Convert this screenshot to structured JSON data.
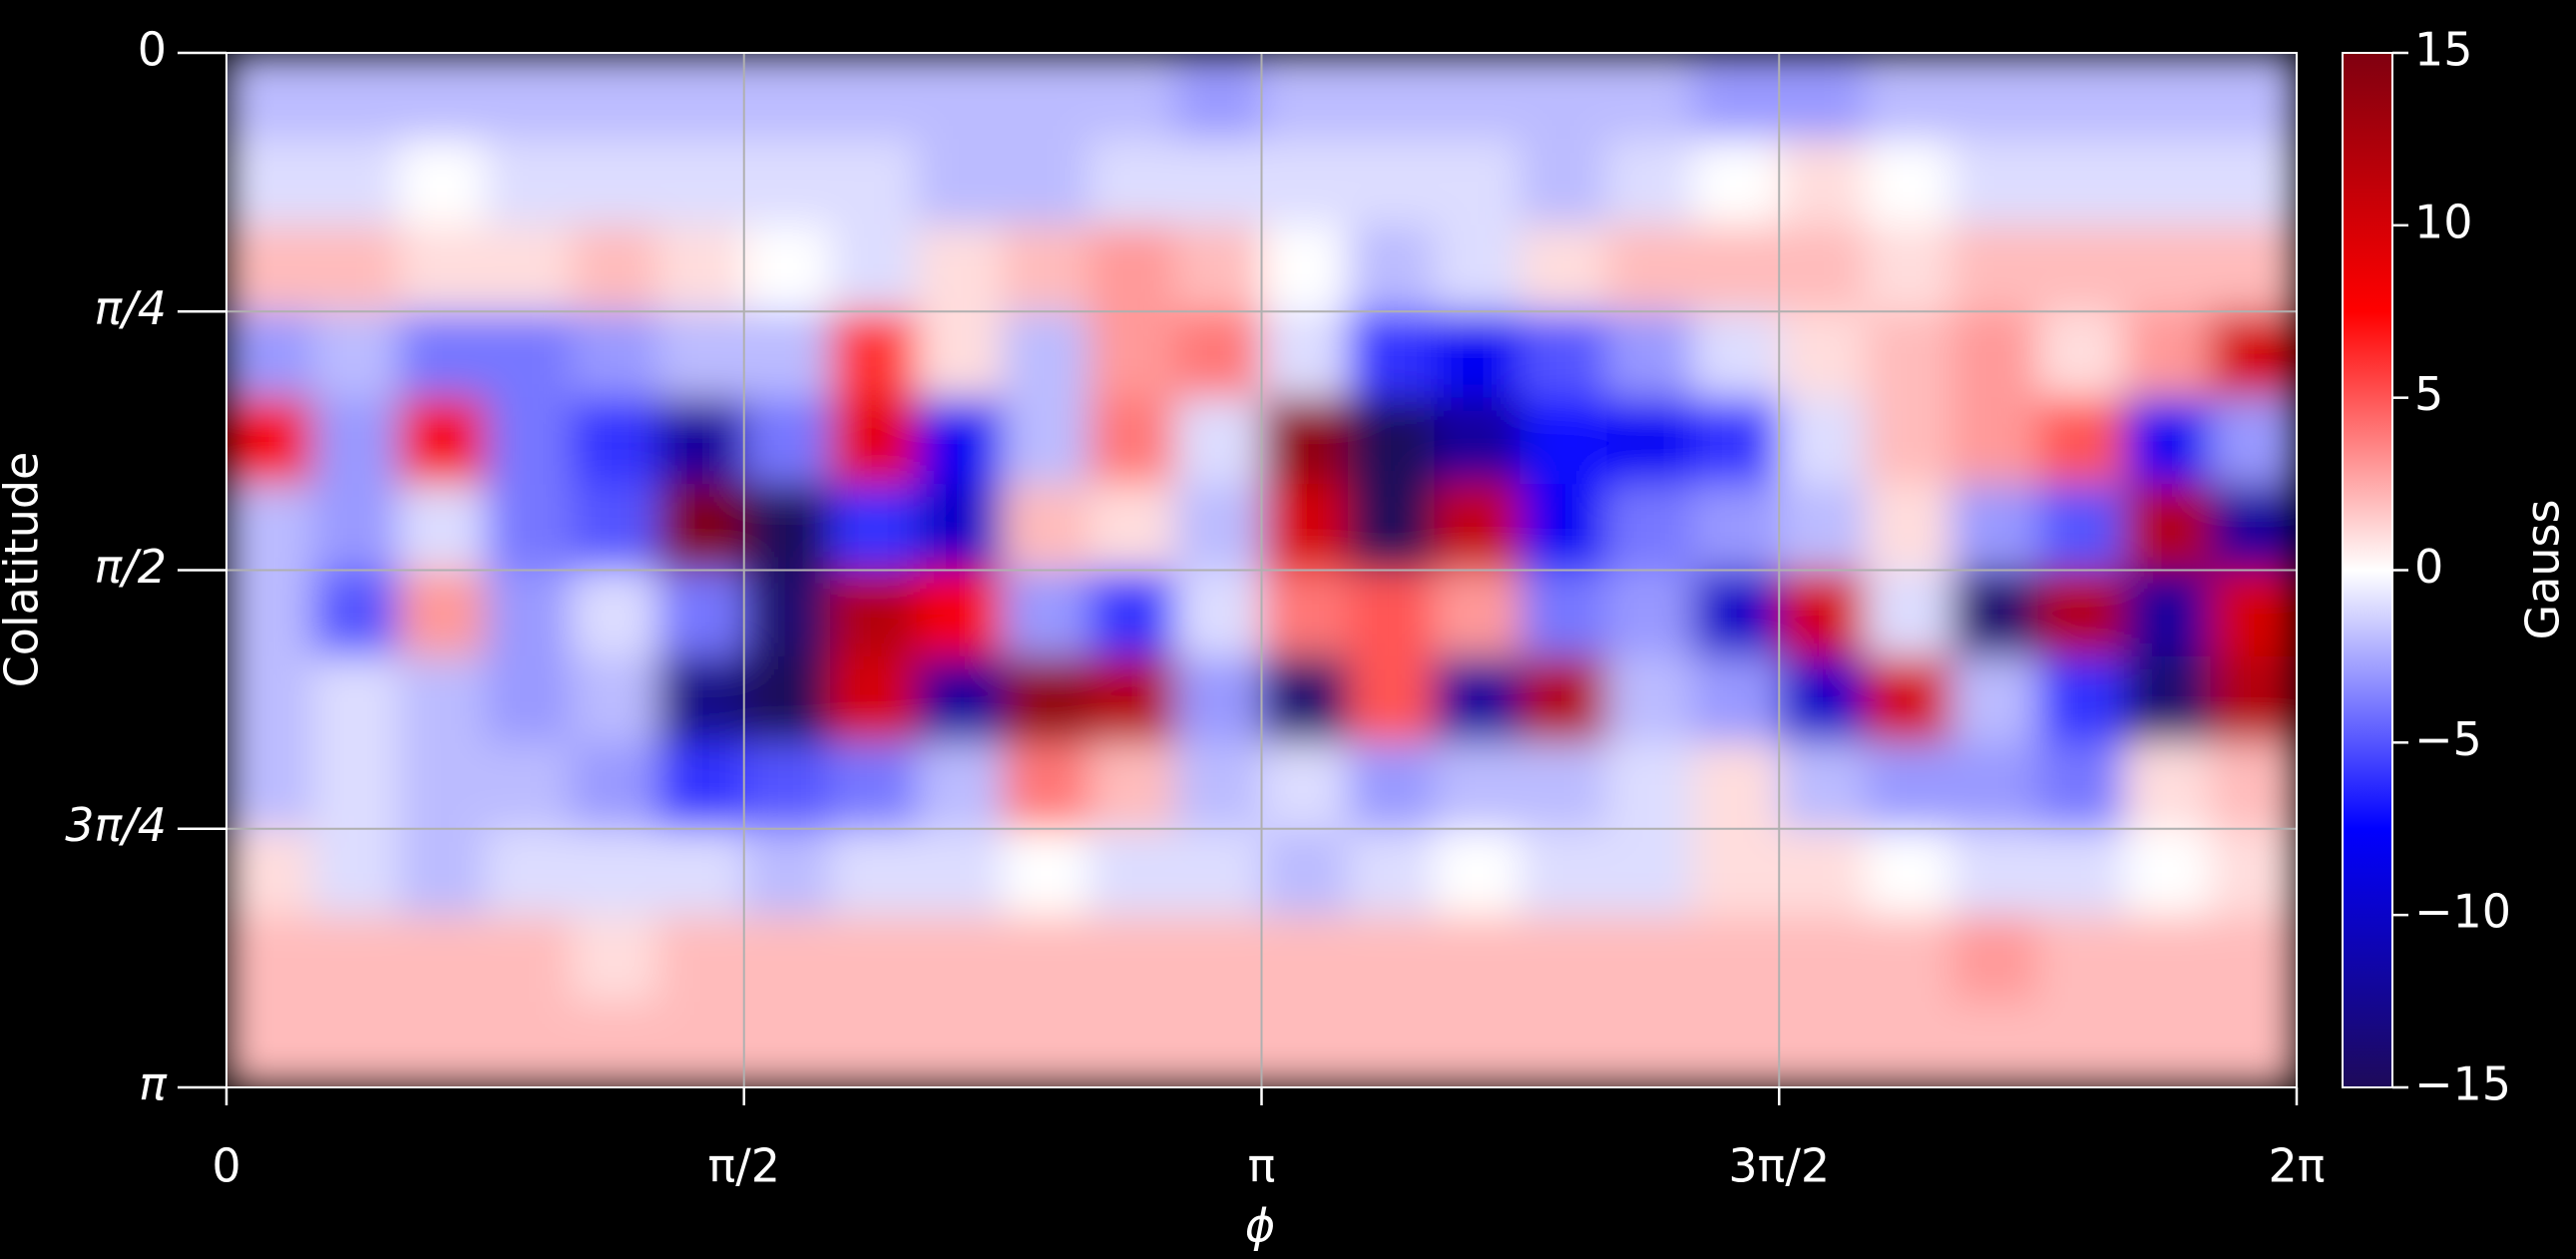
{
  "chart_data": {
    "type": "heatmap",
    "xlabel": "ϕ",
    "ylabel": "Colatitude",
    "colorbar_label": "Gauss",
    "xlim": [
      0,
      6.28319
    ],
    "ylim": [
      3.14159,
      0
    ],
    "xticks": [
      0,
      {
        "value": 1.5708,
        "label": "π/2"
      },
      {
        "value": 3.14159,
        "label": "π"
      },
      {
        "value": 4.71239,
        "label": "3π/2"
      },
      {
        "value": 6.28319,
        "label": "2π"
      }
    ],
    "yticks": [
      0,
      {
        "value": 0.785398,
        "label": "π/4"
      },
      {
        "value": 1.5708,
        "label": "π/2"
      },
      {
        "value": 2.35619,
        "label": "3π/4"
      },
      {
        "value": 3.14159,
        "label": "π"
      }
    ],
    "grid": true,
    "clim": [
      -15,
      15
    ],
    "cticks": [
      15,
      10,
      5,
      0,
      {
        "value": -5,
        "label": "−5"
      },
      {
        "value": -10,
        "label": "−10"
      },
      {
        "value": -15,
        "label": "−15"
      }
    ],
    "colormap": [
      "#1e0a5a",
      "#0000ff",
      "#ffffff",
      "#ff0000",
      "#800010"
    ],
    "z": [
      [
        -2,
        -2,
        -2,
        -2,
        -2,
        -2,
        -2,
        -2,
        -2,
        -2,
        -2,
        -3,
        -2,
        -2,
        -2,
        -2,
        -2,
        -3,
        -3,
        -2,
        -2,
        -2,
        -2,
        -2
      ],
      [
        -1,
        -1,
        0,
        -1,
        -1,
        -1,
        -1,
        -1,
        -2,
        -2,
        -1,
        -1,
        -1,
        -1,
        -1,
        -2,
        -1,
        0,
        1,
        0,
        -1,
        -1,
        -1,
        -1
      ],
      [
        2,
        2,
        1,
        1,
        2,
        1,
        0,
        -1,
        1,
        2,
        3,
        2,
        0,
        -2,
        -1,
        1,
        2,
        2,
        2,
        1,
        2,
        2,
        2,
        2
      ],
      [
        -3,
        -2,
        -4,
        -4,
        -3,
        -2,
        -2,
        6,
        1,
        -2,
        3,
        4,
        -1,
        -6,
        -8,
        -5,
        -3,
        -1,
        1,
        2,
        3,
        1,
        3,
        10
      ],
      [
        8,
        -3,
        8,
        -4,
        -6,
        -12,
        -4,
        9,
        -8,
        -2,
        4,
        -1,
        14,
        -15,
        -12,
        -7,
        -8,
        -6,
        -1,
        2,
        3,
        5,
        -8,
        -3
      ],
      [
        -2,
        -3,
        -1,
        -4,
        -5,
        15,
        -15,
        -6,
        -10,
        2,
        1,
        -2,
        10,
        -15,
        11,
        -8,
        -4,
        -3,
        -2,
        1,
        -3,
        -5,
        12,
        -12
      ],
      [
        -2,
        -5,
        3,
        -3,
        -1,
        -4,
        -14,
        12,
        8,
        -3,
        -6,
        -1,
        4,
        5,
        3,
        -4,
        -3,
        -10,
        10,
        -1,
        -14,
        12,
        -12,
        10
      ],
      [
        -2,
        -1,
        -2,
        -3,
        -2,
        -13,
        -15,
        10,
        -12,
        14,
        12,
        -3,
        -14,
        5,
        -12,
        12,
        -2,
        -3,
        -10,
        10,
        -2,
        -6,
        -14,
        12
      ],
      [
        -2,
        -1,
        -2,
        -2,
        -3,
        -6,
        -5,
        -4,
        -2,
        4,
        2,
        -2,
        -1,
        -3,
        -2,
        -2,
        -1,
        1,
        -2,
        -3,
        -3,
        -4,
        1,
        2
      ],
      [
        1,
        -1,
        -2,
        -1,
        -1,
        -1,
        -2,
        -1,
        -1,
        0,
        -1,
        -1,
        -2,
        -1,
        0,
        -1,
        -1,
        1,
        1,
        0,
        -1,
        -1,
        0,
        1
      ],
      [
        2,
        2,
        2,
        2,
        1,
        2,
        2,
        2,
        2,
        2,
        2,
        2,
        2,
        2,
        2,
        2,
        2,
        2,
        2,
        2,
        3,
        2,
        2,
        2
      ],
      [
        2,
        2,
        2,
        2,
        2,
        2,
        2,
        2,
        2,
        2,
        2,
        2,
        2,
        2,
        2,
        2,
        2,
        2,
        2,
        2,
        2,
        2,
        2,
        2
      ]
    ]
  }
}
